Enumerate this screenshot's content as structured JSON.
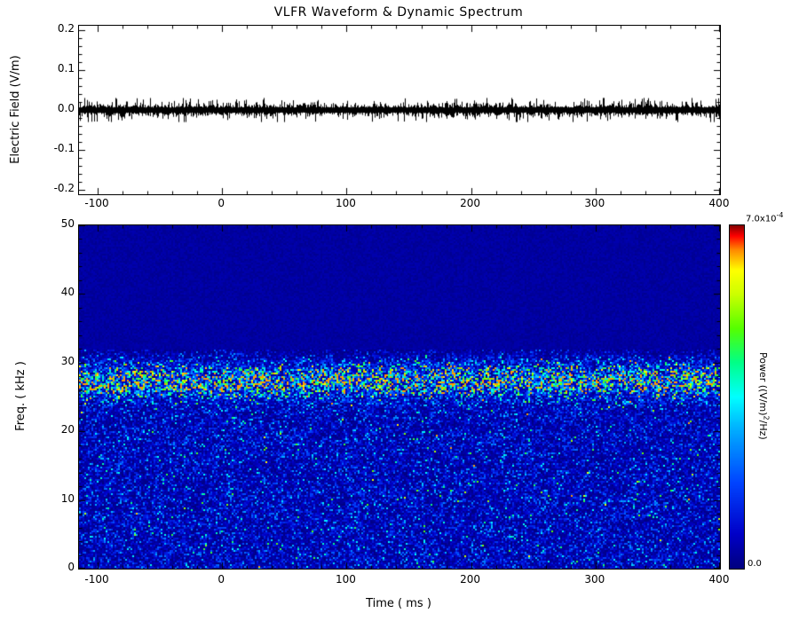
{
  "figure": {
    "title": "VLFR Waveform & Dynamic Spectrum",
    "background": "#ffffff",
    "text_color": "#000000"
  },
  "chart_data": [
    {
      "type": "line",
      "name": "waveform",
      "ylabel": "Electric Field (V/m)",
      "xlim": [
        -115,
        400
      ],
      "ylim": [
        -0.21,
        0.21
      ],
      "x_ticks": [
        -100,
        0,
        100,
        200,
        300,
        400
      ],
      "x_tick_labels": [
        "-100",
        "0",
        "100",
        "200",
        "300",
        "400"
      ],
      "x_minor_step": 20,
      "y_ticks": [
        -0.2,
        -0.1,
        0,
        0.1,
        0.2
      ],
      "y_tick_labels": [
        "-0.2",
        "-0.1",
        "0.0",
        "0.1",
        "0.2"
      ],
      "y_minor_step": 0.02,
      "series": [
        {
          "name": "electric_field",
          "description": "zero-mean broadband noise of roughly constant amplitude across the whole record",
          "mean": 0,
          "typical_peak": 0.015,
          "max_excursion": 0.03
        }
      ],
      "noise": {
        "base_amp": 0.006,
        "spread": 0.006,
        "max_amp": 0.03
      },
      "line_color": "#000000",
      "grid": false
    },
    {
      "type": "heatmap",
      "name": "dynamic_spectrum",
      "xlabel": "Time ( ms )",
      "ylabel": "Freq. ( kHz )",
      "xlim": [
        -115,
        400
      ],
      "ylim": [
        0,
        50
      ],
      "x_ticks": [
        -100,
        0,
        100,
        200,
        300,
        400
      ],
      "x_tick_labels": [
        "-100",
        "0",
        "100",
        "200",
        "300",
        "400"
      ],
      "x_minor_step": 20,
      "y_ticks": [
        0,
        10,
        20,
        30,
        40,
        50
      ],
      "y_tick_labels": [
        "0",
        "10",
        "20",
        "30",
        "40",
        "50"
      ],
      "y_minor_step": 2,
      "features": {
        "noise_cutoff_khz": 31,
        "band_center_khz": 27.3,
        "band_sigma_khz": 2.0,
        "background_level": 0.11,
        "band_peak_level": 0.4,
        "above_cutoff_level": 0.045,
        "description": "Speckled blue broadband noise below ~31 kHz; bright enhanced emission band ~24-30 kHz with cyan/green/yellow speckles; near-uniform dark-blue background above the cutoff"
      },
      "colorbar": {
        "min": 0,
        "max": 0.0007,
        "min_label": "0.0",
        "max_label_base": "7.0x10",
        "max_label_exp": "-4",
        "label_pre": "Power  ((V/m)",
        "label_sup": "2",
        "label_post": "/Hz)"
      },
      "colormap": [
        [
          0,
          "#000080"
        ],
        [
          0.1,
          "#0000c8"
        ],
        [
          0.25,
          "#0044ff"
        ],
        [
          0.4,
          "#00aaff"
        ],
        [
          0.5,
          "#00ffff"
        ],
        [
          0.6,
          "#00ff88"
        ],
        [
          0.7,
          "#55ff00"
        ],
        [
          0.8,
          "#ccff00"
        ],
        [
          0.87,
          "#ffff00"
        ],
        [
          0.93,
          "#ff8800"
        ],
        [
          0.97,
          "#ff0000"
        ],
        [
          1,
          "#880000"
        ]
      ]
    }
  ]
}
